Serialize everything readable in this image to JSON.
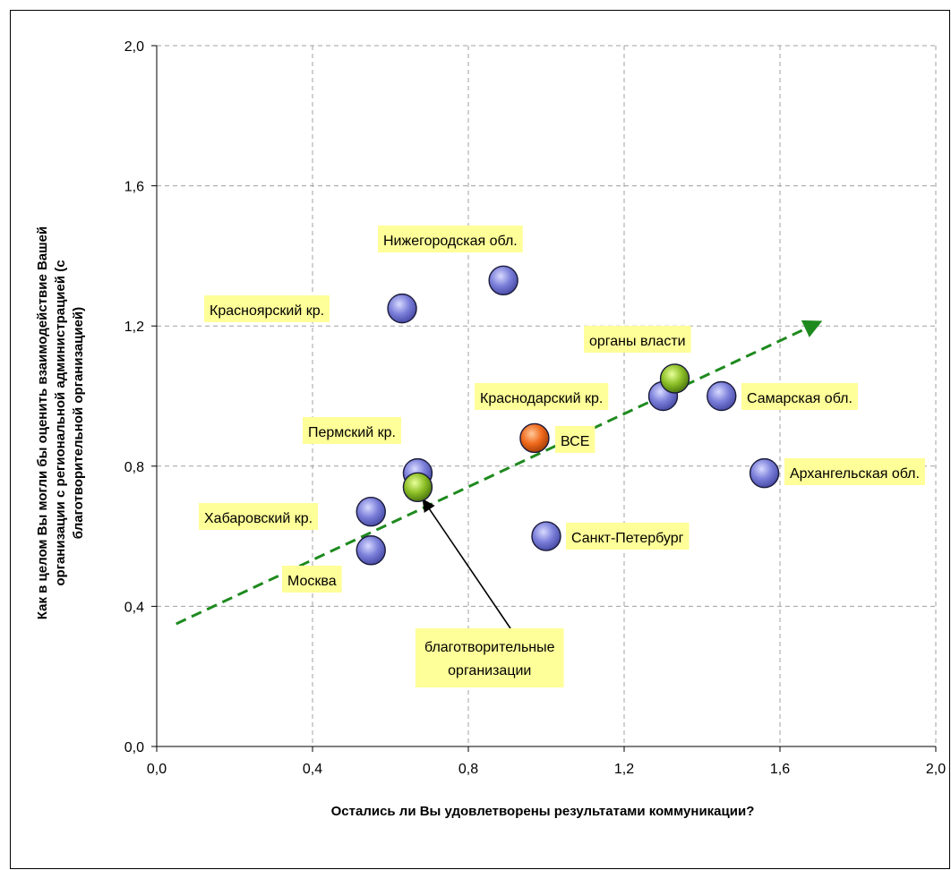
{
  "chart_data": {
    "type": "scatter",
    "title": "",
    "xlabel": "Остались ли Вы удовлетворены результатами коммуникации?",
    "ylabel_lines": [
      "Как в целом Вы могли бы оценить взаимодействие Вашей",
      "организации с региональной администрацией (с",
      "благотворительной организацией)"
    ],
    "xlim": [
      0,
      2
    ],
    "ylim": [
      0,
      2
    ],
    "x_ticks": [
      "0,0",
      "0,4",
      "0,8",
      "1,2",
      "1,6",
      "2,0"
    ],
    "y_ticks": [
      "0,0",
      "0,4",
      "0,8",
      "1,2",
      "1,6",
      "2,0"
    ],
    "grid": true,
    "points": [
      {
        "label": "Нижегородская обл.",
        "x": 0.89,
        "y": 1.33,
        "kind": "region"
      },
      {
        "label": "Красноярский кр.",
        "x": 0.63,
        "y": 1.25,
        "kind": "region"
      },
      {
        "label": "Краснодарский кр.",
        "x": 1.3,
        "y": 1.0,
        "kind": "region"
      },
      {
        "label": "Самарская обл.",
        "x": 1.45,
        "y": 1.0,
        "kind": "region"
      },
      {
        "label": "Пермский кр.",
        "x": 0.67,
        "y": 0.78,
        "kind": "region"
      },
      {
        "label": "Архангельская обл.",
        "x": 1.56,
        "y": 0.78,
        "kind": "region"
      },
      {
        "label": "Хабаровский кр.",
        "x": 0.55,
        "y": 0.67,
        "kind": "region"
      },
      {
        "label": "Москва",
        "x": 0.55,
        "y": 0.56,
        "kind": "region"
      },
      {
        "label": "Санкт-Петербург",
        "x": 1.0,
        "y": 0.6,
        "kind": "region"
      },
      {
        "label": "ВСЕ",
        "x": 0.97,
        "y": 0.88,
        "kind": "all"
      },
      {
        "label": "органы власти",
        "x": 1.33,
        "y": 1.05,
        "kind": "group"
      },
      {
        "label": "благотворительные организации",
        "label_lines": [
          "благотворительные",
          "организации"
        ],
        "x": 0.67,
        "y": 0.74,
        "kind": "group"
      }
    ],
    "trend_line": {
      "from": [
        0.05,
        0.35
      ],
      "to": [
        1.7,
        1.21
      ]
    },
    "colors": {
      "region": "#7b7fd9",
      "group": "#8cbf26",
      "all": "#f06a1c",
      "trend": "#1e8a1e",
      "label_bg": "#ffff99",
      "grid": "#a0a0a0"
    }
  }
}
